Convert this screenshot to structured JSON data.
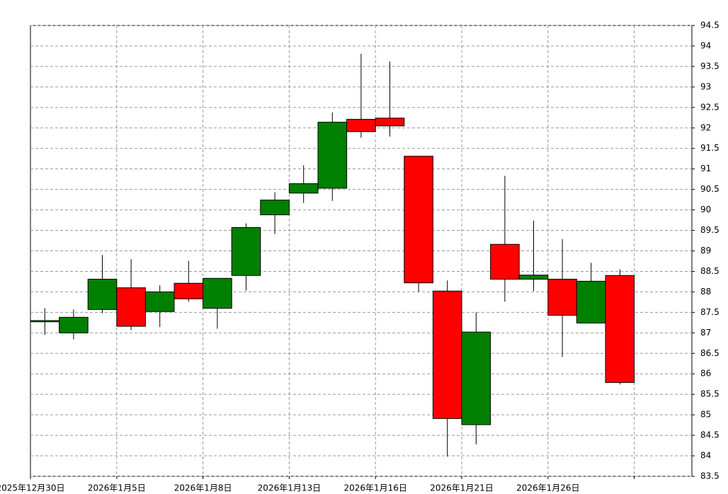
{
  "chart_data": {
    "type": "candlestick",
    "categories": [
      "2025年12月30日",
      null,
      null,
      "2026年1月5日",
      null,
      null,
      "2026年1月8日",
      null,
      null,
      "2026年1月13日",
      null,
      null,
      "2026年1月16日",
      null,
      null,
      "2026年1月21日",
      null,
      null,
      "2026年1月26日",
      null,
      null
    ],
    "open": [
      87.27,
      87.0,
      87.57,
      88.1,
      87.52,
      88.21,
      87.6,
      88.4,
      89.88,
      90.41,
      90.53,
      92.21,
      92.24,
      91.31,
      88.02,
      84.76,
      89.16,
      88.31,
      88.31,
      87.24,
      88.4
    ],
    "high": [
      87.6,
      87.57,
      88.9,
      88.8,
      88.16,
      88.76,
      88.33,
      89.67,
      90.43,
      91.09,
      92.38,
      93.81,
      93.62,
      91.31,
      88.28,
      87.5,
      90.83,
      89.74,
      89.29,
      88.71,
      88.55
    ],
    "low": [
      86.95,
      86.84,
      87.48,
      87.07,
      87.14,
      87.76,
      87.1,
      88.03,
      89.41,
      90.17,
      90.22,
      91.76,
      91.79,
      88.0,
      83.98,
      84.28,
      87.76,
      88.02,
      86.41,
      87.24,
      85.74
    ],
    "close": [
      87.3,
      87.38,
      88.31,
      87.16,
      88.0,
      87.83,
      88.33,
      89.57,
      90.24,
      90.64,
      92.14,
      91.91,
      92.05,
      88.22,
      84.91,
      87.02,
      88.31,
      88.41,
      87.43,
      88.26,
      85.79
    ],
    "up_color": "#008000",
    "down_color": "#ff0000",
    "ylim": [
      83.5,
      94.5
    ],
    "yticks": [
      83.5,
      84,
      84.5,
      85,
      85.5,
      86,
      86.5,
      87,
      87.5,
      88,
      88.5,
      89,
      89.5,
      90,
      90.5,
      91,
      91.5,
      92,
      92.5,
      93,
      93.5,
      94,
      94.5
    ],
    "grid": true
  }
}
